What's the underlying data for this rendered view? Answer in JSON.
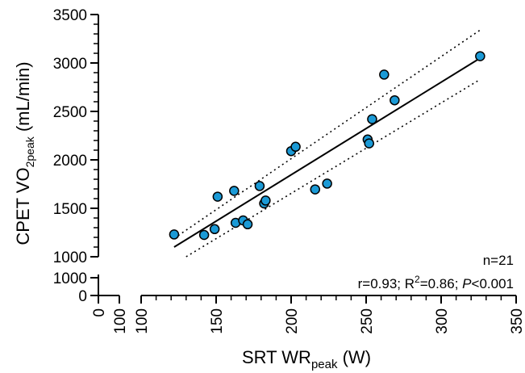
{
  "chart_data": {
    "type": "scatter",
    "xlabel_main": "SRT WR",
    "xlabel_sub": "peak",
    "xlabel_unit": " (W)",
    "ylabel_main": "CPET VO",
    "ylabel_sub1": "2",
    "ylabel_sub2": "peak",
    "ylabel_unit": " (mL/min)",
    "x_ticks_break": [
      "0",
      "100"
    ],
    "x_ticks_main": [
      "100",
      "150",
      "200",
      "250",
      "300",
      "350"
    ],
    "y_ticks_main": [
      "1000",
      "1500",
      "2000",
      "2500",
      "3000",
      "3500"
    ],
    "y_ticks_break": [
      "0",
      "1000"
    ],
    "xlim": [
      100,
      350
    ],
    "ylim": [
      1000,
      3500
    ],
    "marker_color": "#1b9ad6",
    "points": [
      {
        "x": 122,
        "y": 1230
      },
      {
        "x": 142,
        "y": 1225
      },
      {
        "x": 149,
        "y": 1285
      },
      {
        "x": 151,
        "y": 1620
      },
      {
        "x": 162,
        "y": 1680
      },
      {
        "x": 163,
        "y": 1350
      },
      {
        "x": 168,
        "y": 1375
      },
      {
        "x": 171,
        "y": 1335
      },
      {
        "x": 179,
        "y": 1730
      },
      {
        "x": 182,
        "y": 1550
      },
      {
        "x": 183,
        "y": 1580
      },
      {
        "x": 200,
        "y": 2090
      },
      {
        "x": 203,
        "y": 2135
      },
      {
        "x": 216,
        "y": 1695
      },
      {
        "x": 224,
        "y": 1755
      },
      {
        "x": 251,
        "y": 2210
      },
      {
        "x": 252,
        "y": 2170
      },
      {
        "x": 254,
        "y": 2420
      },
      {
        "x": 262,
        "y": 2880
      },
      {
        "x": 269,
        "y": 2615
      },
      {
        "x": 326,
        "y": 3070
      }
    ],
    "fit_line": {
      "x": [
        122,
        326
      ],
      "y": [
        1100,
        3050
      ]
    },
    "ci_upper": {
      "x": [
        122,
        326
      ],
      "y": [
        1190,
        3340
      ]
    },
    "ci_lower": {
      "x": [
        130,
        326
      ],
      "y": [
        1000,
        2830
      ]
    },
    "annotations": {
      "n": "n=21",
      "r": "r=0.93; R",
      "r2_sup": "2",
      "r2_val": "=0.86; ",
      "p_italic": "P",
      "p_val": "<0.001"
    }
  }
}
